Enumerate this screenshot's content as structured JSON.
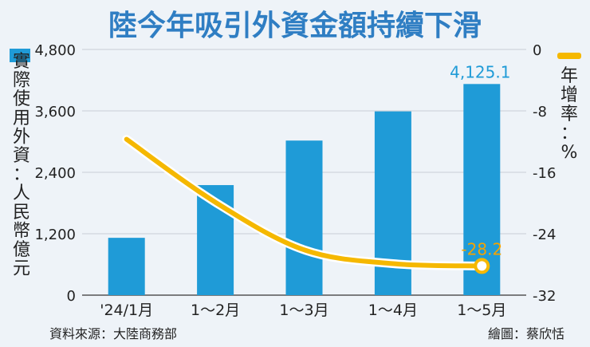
{
  "colors": {
    "bar": "#1f9bd7",
    "line": "#f5b800",
    "title": "#2f7ec3",
    "background": "#eef3f8"
  },
  "chart_data": {
    "type": "bar",
    "title": "陸今年吸引外資金額持續下滑",
    "categories": [
      "'24/1月",
      "1～2月",
      "1～3月",
      "1～4月",
      "1～5月"
    ],
    "series": [
      {
        "name": "實際使用外資：人民幣億元",
        "type": "bar",
        "axis": "left",
        "values": [
          1120,
          2150,
          3020,
          3590,
          4125.1
        ]
      },
      {
        "name": "年增率：%",
        "type": "line",
        "axis": "right",
        "values": [
          -11.7,
          -19.9,
          -26.1,
          -27.9,
          -28.2
        ]
      }
    ],
    "ylabel": "實際使用外資：人民幣億元",
    "ylim": [
      0,
      4800
    ],
    "yticks": [
      "0",
      "1,200",
      "2,400",
      "3,600",
      "4,800"
    ],
    "y2label": "年增率：%",
    "y2lim": [
      -32,
      0
    ],
    "y2ticks": [
      "0",
      "-8",
      "-16",
      "-24",
      "-32"
    ],
    "data_labels": {
      "bar_last": "4,125.1",
      "line_last": "-28.2"
    },
    "grid": true,
    "legend": "right"
  },
  "footer": {
    "source": "資料來源：大陸商務部",
    "credit": "繪圖：蔡欣恬"
  }
}
